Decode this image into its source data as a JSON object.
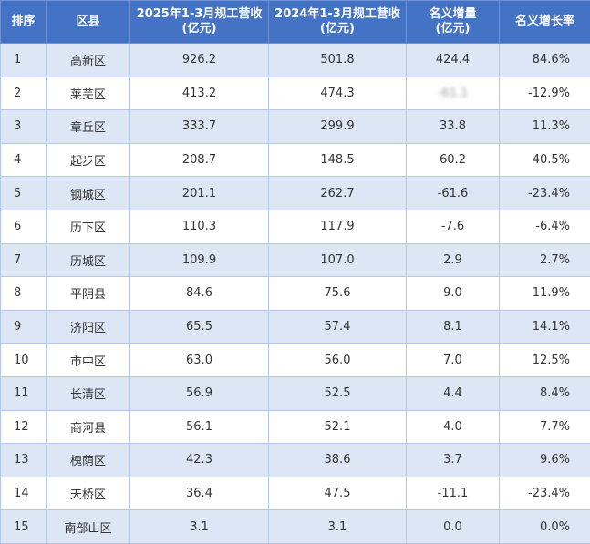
{
  "table": {
    "headers": [
      {
        "lines": [
          "排序"
        ]
      },
      {
        "lines": [
          "区县"
        ]
      },
      {
        "lines": [
          "2025年1-3月规工营收",
          "(亿元)"
        ]
      },
      {
        "lines": [
          "2024年1-3月规工营收",
          "(亿元)"
        ]
      },
      {
        "lines": [
          "名义增量",
          "(亿元)"
        ]
      },
      {
        "lines": [
          "名义增长率"
        ]
      }
    ],
    "rows": [
      {
        "rank": "1",
        "district": "高新区",
        "rev2025": "926.2",
        "rev2024": "501.8",
        "increase": "424.4",
        "rate": "84.6%"
      },
      {
        "rank": "2",
        "district": "莱芜区",
        "rev2025": "413.2",
        "rev2024": "474.3",
        "increase": "-61.1",
        "rate": "-12.9%"
      },
      {
        "rank": "3",
        "district": "章丘区",
        "rev2025": "333.7",
        "rev2024": "299.9",
        "increase": "33.8",
        "rate": "11.3%"
      },
      {
        "rank": "4",
        "district": "起步区",
        "rev2025": "208.7",
        "rev2024": "148.5",
        "increase": "60.2",
        "rate": "40.5%"
      },
      {
        "rank": "5",
        "district": "钢城区",
        "rev2025": "201.1",
        "rev2024": "262.7",
        "increase": "-61.6",
        "rate": "-23.4%"
      },
      {
        "rank": "6",
        "district": "历下区",
        "rev2025": "110.3",
        "rev2024": "117.9",
        "increase": "-7.6",
        "rate": "-6.4%"
      },
      {
        "rank": "7",
        "district": "历城区",
        "rev2025": "109.9",
        "rev2024": "107.0",
        "increase": "2.9",
        "rate": "2.7%"
      },
      {
        "rank": "8",
        "district": "平阴县",
        "rev2025": "84.6",
        "rev2024": "75.6",
        "increase": "9.0",
        "rate": "11.9%"
      },
      {
        "rank": "9",
        "district": "济阳区",
        "rev2025": "65.5",
        "rev2024": "57.4",
        "increase": "8.1",
        "rate": "14.1%"
      },
      {
        "rank": "10",
        "district": "市中区",
        "rev2025": "63.0",
        "rev2024": "56.0",
        "increase": "7.0",
        "rate": "12.5%"
      },
      {
        "rank": "11",
        "district": "长清区",
        "rev2025": "56.9",
        "rev2024": "52.5",
        "increase": "4.4",
        "rate": "8.4%"
      },
      {
        "rank": "12",
        "district": "商河县",
        "rev2025": "56.1",
        "rev2024": "52.1",
        "increase": "4.0",
        "rate": "7.7%"
      },
      {
        "rank": "13",
        "district": "槐荫区",
        "rev2025": "42.3",
        "rev2024": "38.6",
        "increase": "3.7",
        "rate": "9.6%"
      },
      {
        "rank": "14",
        "district": "天桥区",
        "rev2025": "36.4",
        "rev2024": "47.5",
        "increase": "-11.1",
        "rate": "-23.4%"
      },
      {
        "rank": "15",
        "district": "南部山区",
        "rev2025": "3.1",
        "rev2024": "3.1",
        "increase": "0.0",
        "rate": "0.0%"
      }
    ]
  }
}
